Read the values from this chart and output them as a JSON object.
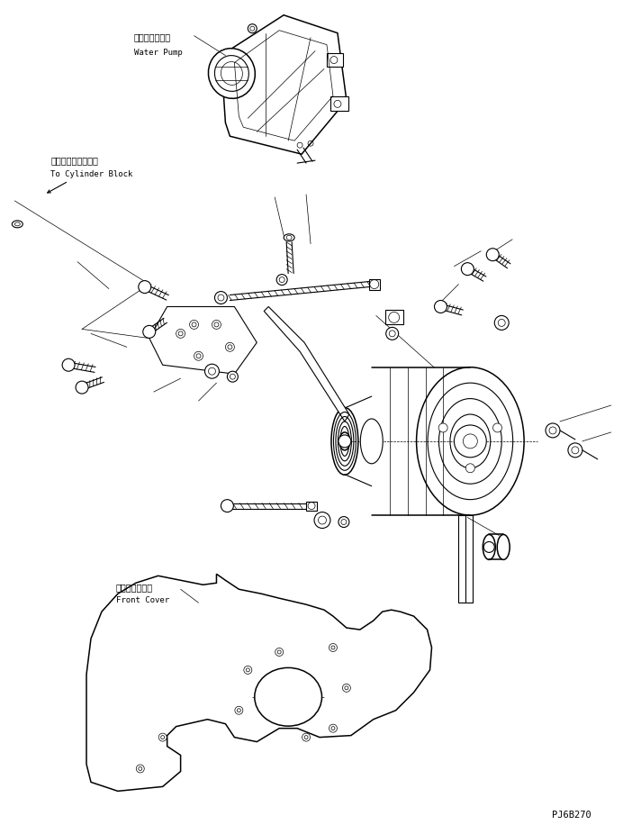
{
  "bg_color": "#ffffff",
  "line_color": "#000000",
  "fig_width": 7.12,
  "fig_height": 9.26,
  "dpi": 100,
  "part_code": "PJ6B270",
  "labels": {
    "water_pump_jp": "ウォータポンプ",
    "water_pump_en": "Water Pump",
    "cylinder_block_jp": "シリンダブロックへ",
    "cylinder_block_en": "To Cylinder Block",
    "front_cover_jp": "フロントカバー",
    "front_cover_en": "Front Cover"
  }
}
